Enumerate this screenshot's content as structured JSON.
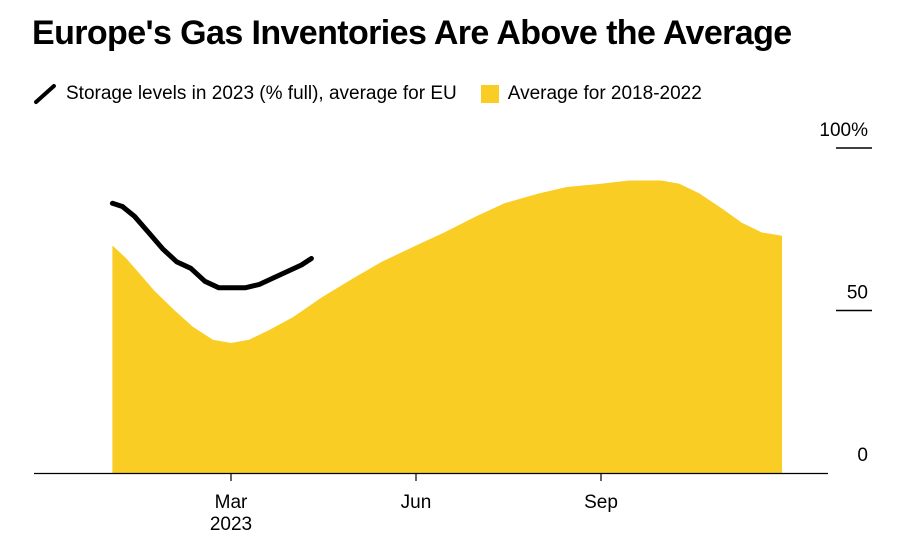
{
  "colors": {
    "line": "#000000",
    "area": "#f9cd24"
  },
  "icons": {
    "line_series": "diagonal-line-swatch",
    "area_series": "square-swatch"
  },
  "chart_data": {
    "type": "area",
    "title": "Europe's Gas Inventories Are Above the Average",
    "xlabel": "",
    "ylabel": "",
    "ylim": [
      0,
      100
    ],
    "y_ticks": [
      "100%",
      "50",
      "0"
    ],
    "x_ticks": [
      {
        "date": "2023-03-01",
        "label": "Mar",
        "sublabel": "2023"
      },
      {
        "date": "2023-06-01",
        "label": "Jun",
        "sublabel": ""
      },
      {
        "date": "2023-09-01",
        "label": "Sep",
        "sublabel": ""
      }
    ],
    "x_range": [
      "2023-01-01",
      "2023-12-31"
    ],
    "grid": false,
    "legend_position": "top-left",
    "series": [
      {
        "name": "Storage levels in 2023 (% full), average for EU",
        "type": "line",
        "color": "#000000",
        "points": [
          [
            "2023-01-01",
            83
          ],
          [
            "2023-01-06",
            82
          ],
          [
            "2023-01-12",
            79
          ],
          [
            "2023-01-19",
            74
          ],
          [
            "2023-01-26",
            69
          ],
          [
            "2023-02-02",
            65
          ],
          [
            "2023-02-09",
            63
          ],
          [
            "2023-02-16",
            59
          ],
          [
            "2023-02-23",
            57
          ],
          [
            "2023-03-01",
            57
          ],
          [
            "2023-03-08",
            57
          ],
          [
            "2023-03-15",
            58
          ],
          [
            "2023-03-22",
            60
          ],
          [
            "2023-03-29",
            62
          ],
          [
            "2023-04-05",
            64
          ],
          [
            "2023-04-10",
            66
          ]
        ]
      },
      {
        "name": "Average for 2018-2022",
        "type": "area",
        "color": "#f9cd24",
        "points": [
          [
            "2023-01-01",
            70
          ],
          [
            "2023-01-08",
            66
          ],
          [
            "2023-01-15",
            61
          ],
          [
            "2023-01-22",
            56
          ],
          [
            "2023-02-01",
            50
          ],
          [
            "2023-02-10",
            45
          ],
          [
            "2023-02-20",
            41
          ],
          [
            "2023-03-01",
            40
          ],
          [
            "2023-03-10",
            41
          ],
          [
            "2023-03-20",
            44
          ],
          [
            "2023-04-01",
            48
          ],
          [
            "2023-04-15",
            54
          ],
          [
            "2023-05-01",
            60
          ],
          [
            "2023-05-15",
            65
          ],
          [
            "2023-06-01",
            70
          ],
          [
            "2023-06-15",
            74
          ],
          [
            "2023-07-01",
            79
          ],
          [
            "2023-07-15",
            83
          ],
          [
            "2023-08-01",
            86
          ],
          [
            "2023-08-15",
            88
          ],
          [
            "2023-09-01",
            89
          ],
          [
            "2023-09-15",
            90
          ],
          [
            "2023-10-01",
            90
          ],
          [
            "2023-10-10",
            89
          ],
          [
            "2023-10-20",
            86
          ],
          [
            "2023-11-01",
            81
          ],
          [
            "2023-11-10",
            77
          ],
          [
            "2023-11-20",
            74
          ],
          [
            "2023-11-30",
            73
          ]
        ]
      }
    ]
  }
}
